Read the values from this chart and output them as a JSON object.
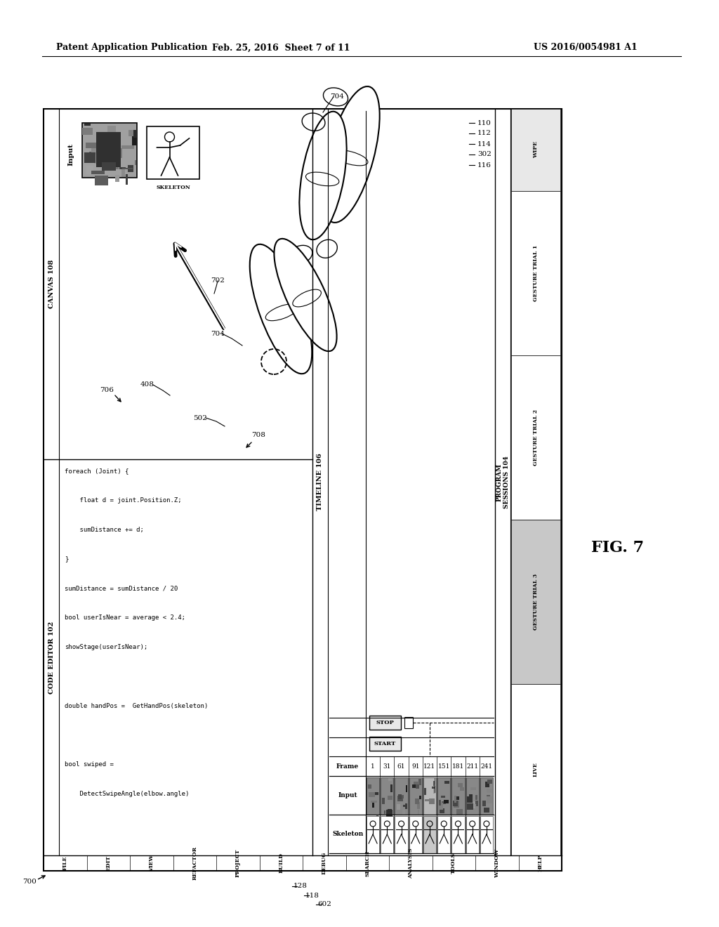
{
  "header_left": "Patent Application Publication",
  "header_center": "Feb. 25, 2016  Sheet 7 of 11",
  "header_right": "US 2016/0054981 A1",
  "menu_items": [
    "FILE",
    "EDIT",
    "VIEW",
    "REFACTOR",
    "PROJECT",
    "BUILD",
    "DEBUG",
    "SEARCH",
    "ANALYSIS",
    "TOOLS",
    "WINDOW",
    "HELP"
  ],
  "code_editor_label": "CODE EDITOR 102",
  "canvas_label": "CANVAS 108",
  "timeline_label": "TIMELINE 106",
  "program_sessions_label": "PROGRAM\nSESSIONS 104",
  "code_lines": [
    "foreach (Joint) {",
    "    float d = joint.Position.Z;",
    "    sumDistance += d;",
    "}",
    "sumDistance = sumDistance / 20",
    "bool userIsNear = average < 2.4;",
    "showStage(userIsNear);",
    "",
    "double handPos =  GetHandPos(skeleton)",
    "",
    "bool swiped =",
    "    DetectSwipeAngle(elbow.angle)"
  ],
  "session_labels": [
    "WIPE",
    "GESTURE TRIAL 1",
    "GESTURE TRIAL 2",
    "GESTURE TRIAL 3",
    "LIVE"
  ],
  "session_colors": [
    "#e8e8e8",
    "#ffffff",
    "#ffffff",
    "#c8c8c8",
    "#ffffff"
  ],
  "frame_numbers": [
    "1",
    "31",
    "61",
    "91",
    "121",
    "151",
    "181",
    "211",
    "241"
  ],
  "row_labels": [
    "Frame",
    "Input",
    "Skeleton"
  ],
  "highlight_frame_col": 4,
  "ref_labels": [
    "700",
    "704",
    "110",
    "112",
    "114",
    "302",
    "116",
    "702",
    "704",
    "706",
    "408",
    "502",
    "708",
    "128",
    "118",
    "602"
  ],
  "bg_color": "#ffffff"
}
